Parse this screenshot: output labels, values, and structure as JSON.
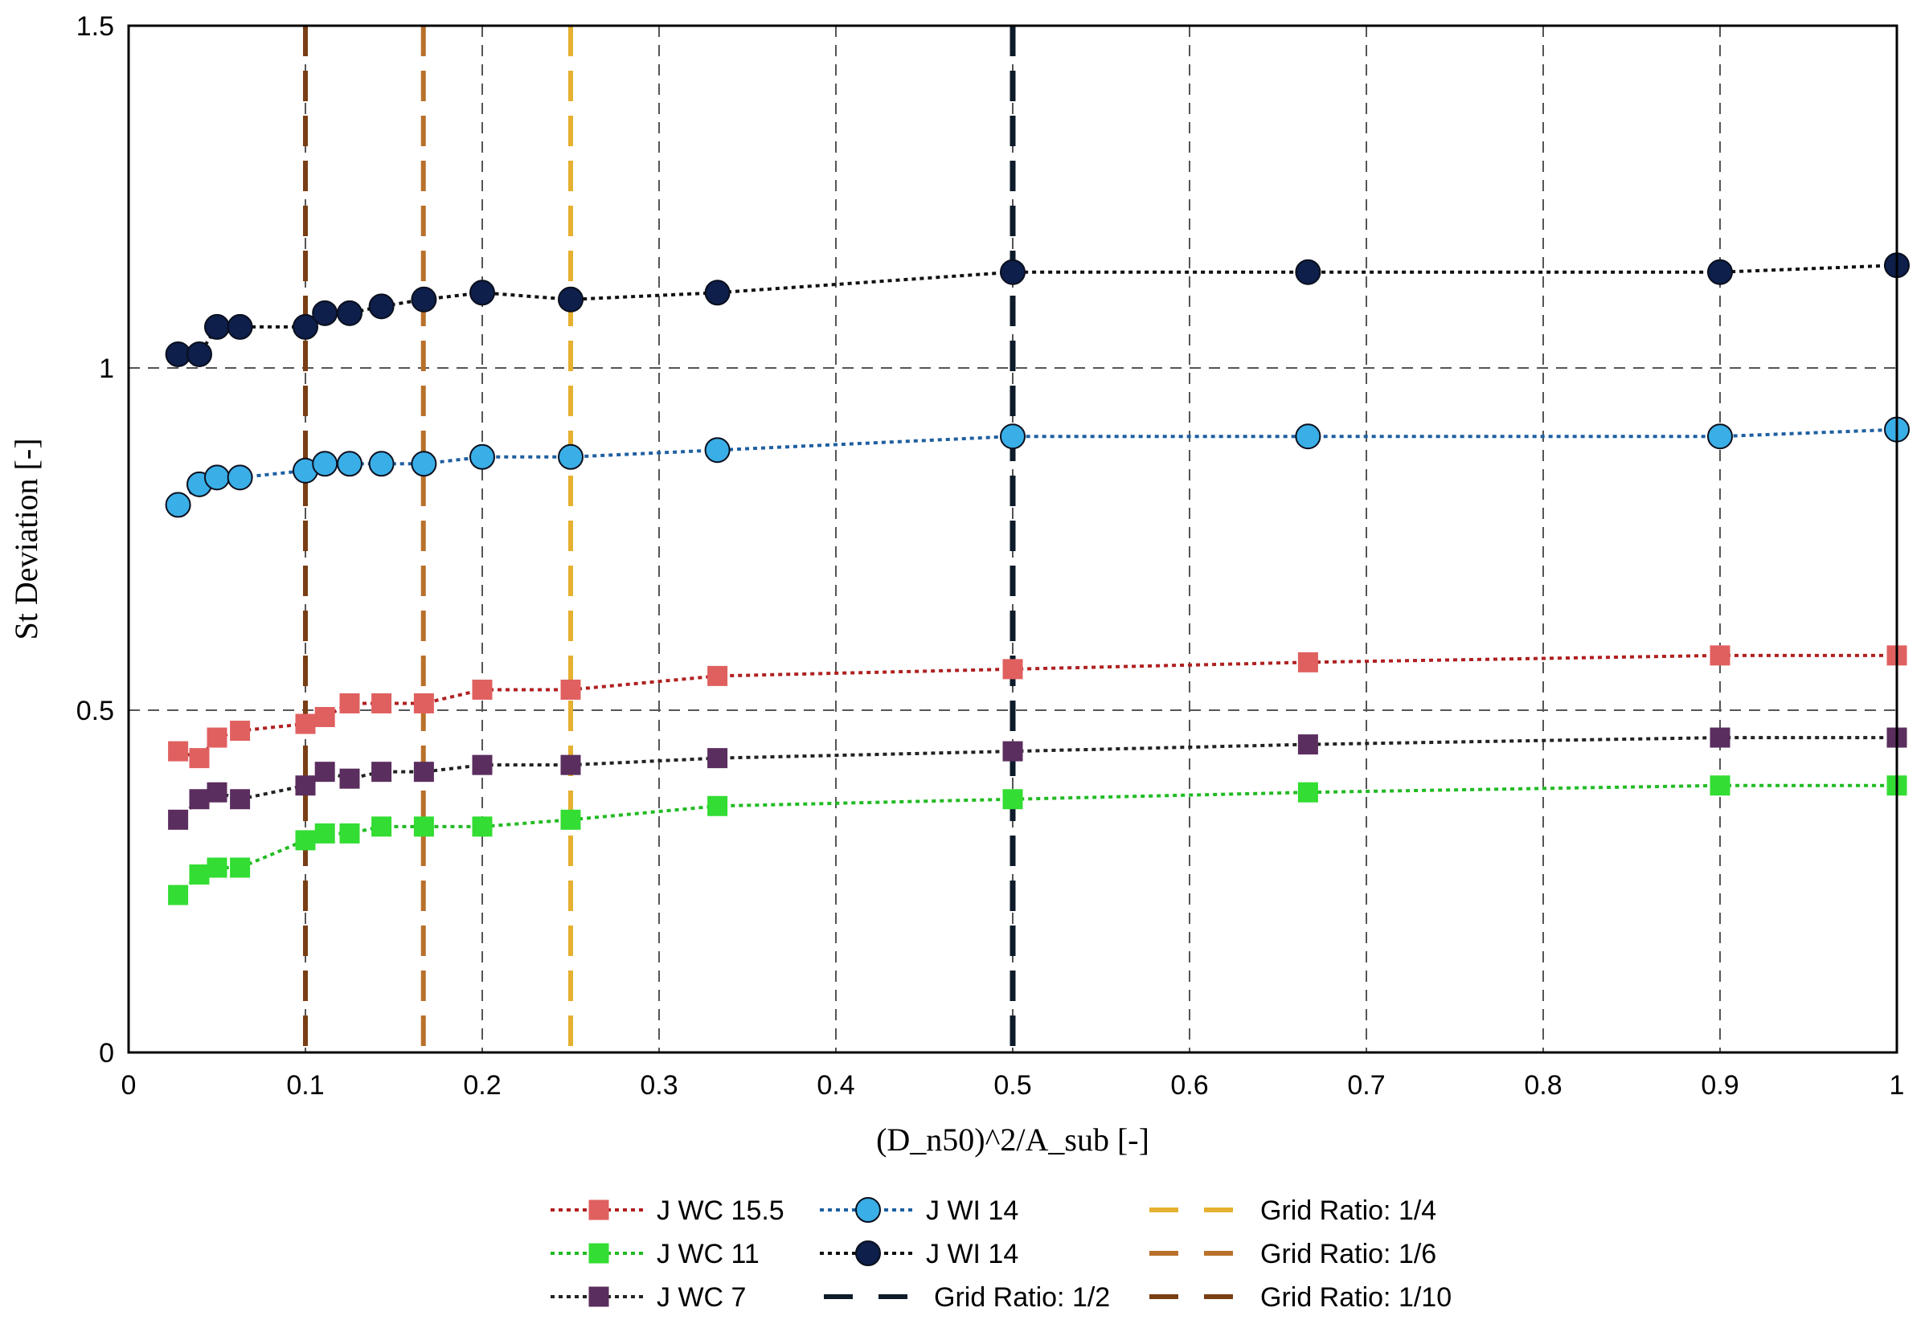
{
  "chart_data": {
    "type": "line",
    "xlabel": "(D_n50)^2/A_sub [-]",
    "ylabel": "St Deviation [-]",
    "xlim": [
      0,
      1
    ],
    "ylim": [
      0,
      1.5
    ],
    "grid": true,
    "x_ticks": [
      "0",
      "0.1",
      "0.2",
      "0.3",
      "0.4",
      "0.5",
      "0.6",
      "0.7",
      "0.8",
      "0.9",
      "1"
    ],
    "y_ticks": [
      "0",
      "0.5",
      "1",
      "1.5"
    ],
    "x": [
      0.028,
      0.04,
      0.05,
      0.063,
      0.1,
      0.111,
      0.125,
      0.143,
      0.167,
      0.2,
      0.25,
      0.333,
      0.5,
      0.667,
      0.9,
      1.0
    ],
    "series": [
      {
        "name": "J WC 15.5",
        "marker": "square",
        "color": "#e06060",
        "line_color": "#b02020",
        "values": [
          0.44,
          0.43,
          0.46,
          0.47,
          0.48,
          0.49,
          0.51,
          0.51,
          0.51,
          0.53,
          0.53,
          0.55,
          0.56,
          0.57,
          0.58,
          0.58
        ]
      },
      {
        "name": "J WC 11",
        "marker": "square",
        "color": "#33dd33",
        "line_color": "#22bb22",
        "values": [
          0.23,
          0.26,
          0.27,
          0.27,
          0.31,
          0.32,
          0.32,
          0.33,
          0.33,
          0.33,
          0.34,
          0.36,
          0.37,
          0.38,
          0.39,
          0.39
        ]
      },
      {
        "name": "J WC 7",
        "marker": "square",
        "color": "#5a2e5e",
        "line_color": "#222222",
        "values": [
          0.34,
          0.37,
          0.38,
          0.37,
          0.39,
          0.41,
          0.4,
          0.41,
          0.41,
          0.42,
          0.42,
          0.43,
          0.44,
          0.45,
          0.46,
          0.46
        ]
      },
      {
        "name": "J WI 14",
        "marker": "circle",
        "color": "#3aaee6",
        "line_color": "#1f5fa0",
        "values": [
          0.8,
          0.83,
          0.84,
          0.84,
          0.85,
          0.86,
          0.86,
          0.86,
          0.86,
          0.87,
          0.87,
          0.88,
          0.9,
          0.9,
          0.9,
          0.91
        ]
      },
      {
        "name": "J WI 14",
        "marker": "circle",
        "color": "#0d1f4a",
        "line_color": "#111111",
        "values": [
          1.02,
          1.02,
          1.06,
          1.06,
          1.06,
          1.08,
          1.08,
          1.09,
          1.1,
          1.11,
          1.1,
          1.11,
          1.14,
          1.14,
          1.14,
          1.15
        ]
      }
    ],
    "vertical_lines": [
      {
        "name": "Grid Ratio: 1/2",
        "x": 0.5,
        "color": "#0d1b2a"
      },
      {
        "name": "Grid Ratio: 1/4",
        "x": 0.25,
        "color": "#e6b030"
      },
      {
        "name": "Grid Ratio: 1/6",
        "x": 0.1667,
        "color": "#b8702a"
      },
      {
        "name": "Grid Ratio: 1/10",
        "x": 0.1,
        "color": "#7a3e14"
      }
    ],
    "legend_position": "bottom-center"
  }
}
